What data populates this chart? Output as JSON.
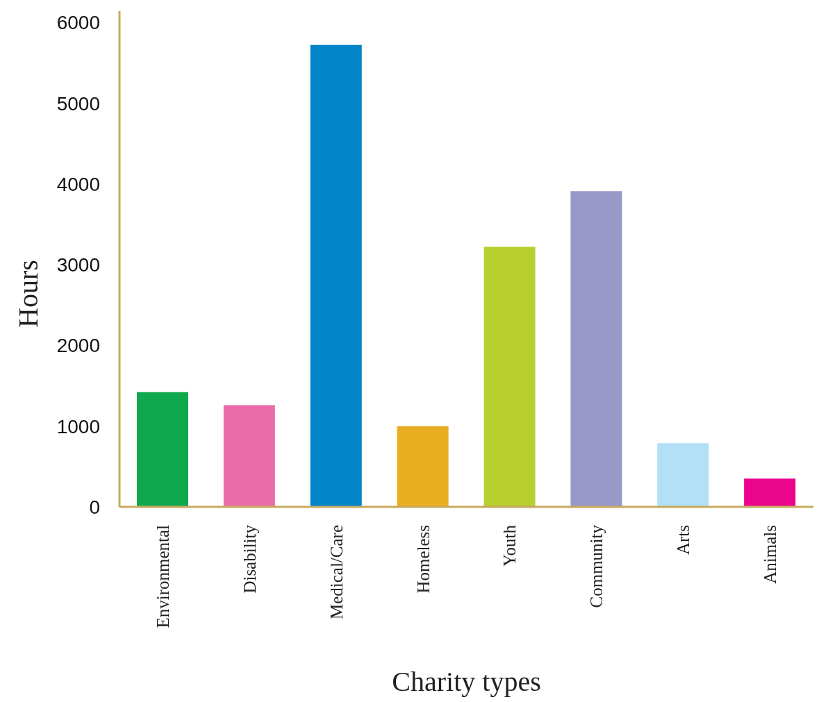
{
  "chart_data": {
    "type": "bar",
    "xlabel": "Charity types",
    "ylabel": "Hours",
    "categories": [
      "Environmental",
      "Disability",
      "Medical/Care",
      "Homeless",
      "Youth",
      "Community",
      "Arts",
      "Animals"
    ],
    "values": [
      1420,
      1260,
      5720,
      1000,
      3220,
      3910,
      790,
      350
    ],
    "colors": [
      "#10a84e",
      "#e96ca8",
      "#0085c9",
      "#ebae22",
      "#b7cf2f",
      "#9899c9",
      "#b2e0f6",
      "#eb058c"
    ],
    "ylim": [
      0,
      6140
    ],
    "yticks": [
      0,
      1000,
      2000,
      3000,
      4000,
      5000,
      6000
    ],
    "grid": false,
    "legend": false
  }
}
